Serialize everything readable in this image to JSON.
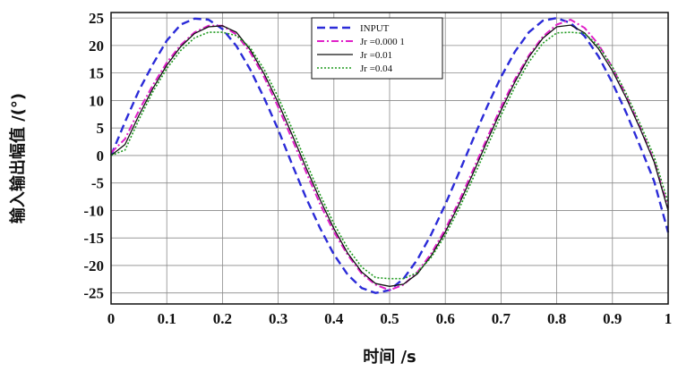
{
  "chart_data": {
    "type": "line",
    "xlabel": "时间 /s",
    "ylabel": "输入输出幅值 /(°)",
    "xlim": [
      0,
      1
    ],
    "ylim": [
      -27,
      26
    ],
    "x_ticks": [
      "0",
      "0.1",
      "0.2",
      "0.3",
      "0.4",
      "0.5",
      "0.6",
      "0.7",
      "0.8",
      "0.9",
      "1"
    ],
    "y_ticks": [
      "25",
      "20",
      "15",
      "10",
      "5",
      "0",
      "-5",
      "-10",
      "-15",
      "-20",
      "-25"
    ],
    "x_tick_values": [
      0,
      0.1,
      0.2,
      0.3,
      0.4,
      0.5,
      0.6,
      0.7,
      0.8,
      0.9,
      1
    ],
    "y_tick_values": [
      25,
      20,
      15,
      10,
      5,
      0,
      -5,
      -10,
      -15,
      -20,
      -25
    ],
    "grid": true,
    "legend_position": "top-center",
    "x": [
      0,
      0.025,
      0.05,
      0.075,
      0.1,
      0.125,
      0.15,
      0.175,
      0.2,
      0.225,
      0.25,
      0.275,
      0.3,
      0.325,
      0.35,
      0.375,
      0.4,
      0.425,
      0.45,
      0.475,
      0.5,
      0.525,
      0.55,
      0.575,
      0.6,
      0.625,
      0.65,
      0.675,
      0.7,
      0.725,
      0.75,
      0.775,
      0.8,
      0.825,
      0.85,
      0.875,
      0.9,
      0.925,
      0.95,
      0.975,
      1
    ],
    "series": [
      {
        "name": "INPUT",
        "color": "#2b2bd8",
        "style": "dashed",
        "values": [
          0,
          6.1,
          11.8,
          16.6,
          20.9,
          23.8,
          24.9,
          24.7,
          23.0,
          19.9,
          15.6,
          10.4,
          4.7,
          -1.6,
          -7.7,
          -13.2,
          -18.0,
          -21.7,
          -24.1,
          -25.0,
          -24.5,
          -22.4,
          -18.9,
          -14.3,
          -8.9,
          -3.0,
          3.0,
          8.9,
          14.3,
          18.9,
          22.4,
          24.5,
          25.0,
          24.1,
          21.7,
          18.0,
          13.2,
          7.7,
          1.6,
          -4.7,
          -14.0
        ]
      },
      {
        "name": "Jr =0.000 1",
        "color": "#e020c8",
        "style": "dashdot",
        "values": [
          0.5,
          3.0,
          8.2,
          12.8,
          16.9,
          20.1,
          22.4,
          23.6,
          23.6,
          22.0,
          18.7,
          14.2,
          8.8,
          3.0,
          -3.0,
          -8.8,
          -13.9,
          -18.1,
          -21.5,
          -23.5,
          -24.5,
          -23.5,
          -21.2,
          -17.8,
          -13.4,
          -8.2,
          -2.6,
          3.2,
          8.8,
          13.9,
          18.2,
          21.6,
          23.8,
          24.7,
          23.2,
          20.2,
          16.0,
          10.8,
          5.0,
          -1.0,
          -9.5
        ]
      },
      {
        "name": "Jr =0.01",
        "color": "#111111",
        "style": "solid",
        "values": [
          0.0,
          2.0,
          7.3,
          12.2,
          16.4,
          19.8,
          22.2,
          23.4,
          23.6,
          22.4,
          19.2,
          14.8,
          9.6,
          3.8,
          -2.2,
          -8.0,
          -13.3,
          -17.8,
          -21.2,
          -23.3,
          -23.8,
          -23.4,
          -21.5,
          -18.2,
          -13.9,
          -8.8,
          -3.2,
          2.6,
          8.2,
          13.4,
          17.9,
          21.3,
          23.4,
          23.7,
          22.3,
          19.4,
          15.4,
          10.4,
          4.8,
          -1.2,
          -10.0
        ]
      },
      {
        "name": "Jr =0.04",
        "color": "#1f9a1f",
        "style": "dotted",
        "values": [
          0.0,
          1.0,
          6.5,
          11.6,
          15.8,
          19.1,
          21.4,
          22.4,
          22.4,
          21.8,
          19.6,
          15.6,
          10.6,
          4.9,
          -1.2,
          -7.1,
          -12.4,
          -16.9,
          -20.3,
          -22.2,
          -22.4,
          -22.4,
          -21.3,
          -18.5,
          -14.5,
          -9.6,
          -4.1,
          1.6,
          7.3,
          12.5,
          17.0,
          20.4,
          22.3,
          22.4,
          22.2,
          19.9,
          16.1,
          11.2,
          5.7,
          -0.2,
          -8.6
        ]
      }
    ]
  }
}
